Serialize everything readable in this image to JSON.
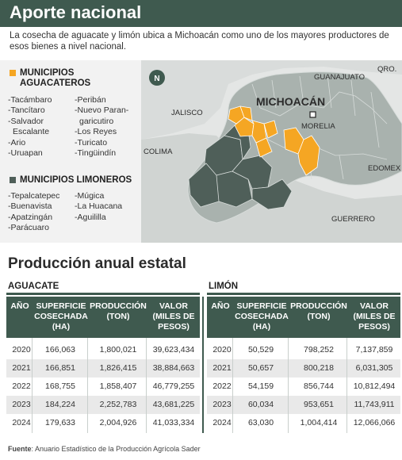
{
  "header": {
    "title": "Aporte nacional"
  },
  "intro": "La cosecha de aguacate y limón ubica a Michoacán como uno de los mayores productores de esos bienes a nivel nacional.",
  "legend": {
    "aguacate": {
      "title_line1": "MUNICIPIOS",
      "title_line2": "AGUACATEROS",
      "color": "#f5a623",
      "col1": [
        "-Tacámbaro",
        "-Tancítaro",
        "-Salvador",
        "  Escalante",
        "-Ario",
        "-Uruapan"
      ],
      "col2": [
        "-Peribán",
        "-Nuevo Paran-",
        "  garicutiro",
        "-Los Reyes",
        "-Turicato",
        "-Tingüindín"
      ]
    },
    "limon": {
      "title": "MUNICIPIOS LIMONEROS",
      "color": "#4f5f59",
      "col1": [
        "-Tepalcatepec",
        "-Buenavista",
        "-Apatzingán",
        "-Parácuaro"
      ],
      "col2": [
        "-Múgica",
        "-La Huacana",
        "-Aguililla"
      ]
    }
  },
  "map": {
    "state_label": "MICHOACÁN",
    "capital": "MORELIA",
    "neighbors": [
      "GUANAJUATO",
      "QRO.",
      "JALISCO",
      "COLIMA",
      "EDOMEX",
      "GUERRERO"
    ],
    "compass": "N",
    "colors": {
      "water": "#bcc4c1",
      "state": "#a9b2ae",
      "avocado": "#f5a623",
      "lemon": "#4f5f59",
      "borders": "#d7dcda"
    }
  },
  "section_title": "Producción anual estatal",
  "tables": [
    {
      "label": "AGUACATE",
      "headers": [
        "AÑO",
        "SUPERFICIE COSECHADA (HA)",
        "PRODUCCIÓN (TON)",
        "VALOR (MILES DE PESOS)"
      ],
      "rows": [
        [
          "2020",
          "166,063",
          "1,800,021",
          "39,623,434"
        ],
        [
          "2021",
          "166,851",
          "1,826,415",
          "38,884,663"
        ],
        [
          "2022",
          "168,755",
          "1,858,407",
          "46,779,255"
        ],
        [
          "2023",
          "184,224",
          "2,252,783",
          "43,681,225"
        ],
        [
          "2024",
          "179,633",
          "2,004,926",
          "41,033,334"
        ]
      ]
    },
    {
      "label": "LIMÓN",
      "headers": [
        "AÑO",
        "SUPERFICIE COSECHADA (HA)",
        "PRODUCCIÓN (TON)",
        "VALOR (MILES DE PESOS)"
      ],
      "rows": [
        [
          "2020",
          "50,529",
          "798,252",
          "7,137,859"
        ],
        [
          "2021",
          "50,657",
          "800,218",
          "6,031,305"
        ],
        [
          "2022",
          "54,159",
          "856,744",
          "10,812,494"
        ],
        [
          "2023",
          "60,034",
          "953,651",
          "11,743,911"
        ],
        [
          "2024",
          "63,030",
          "1,004,414",
          "12,066,066"
        ]
      ]
    }
  ],
  "footer": {
    "source_label": "Fuente",
    "source_text": ": Anuario Estadístico de la Producción Agrícola Sader"
  }
}
